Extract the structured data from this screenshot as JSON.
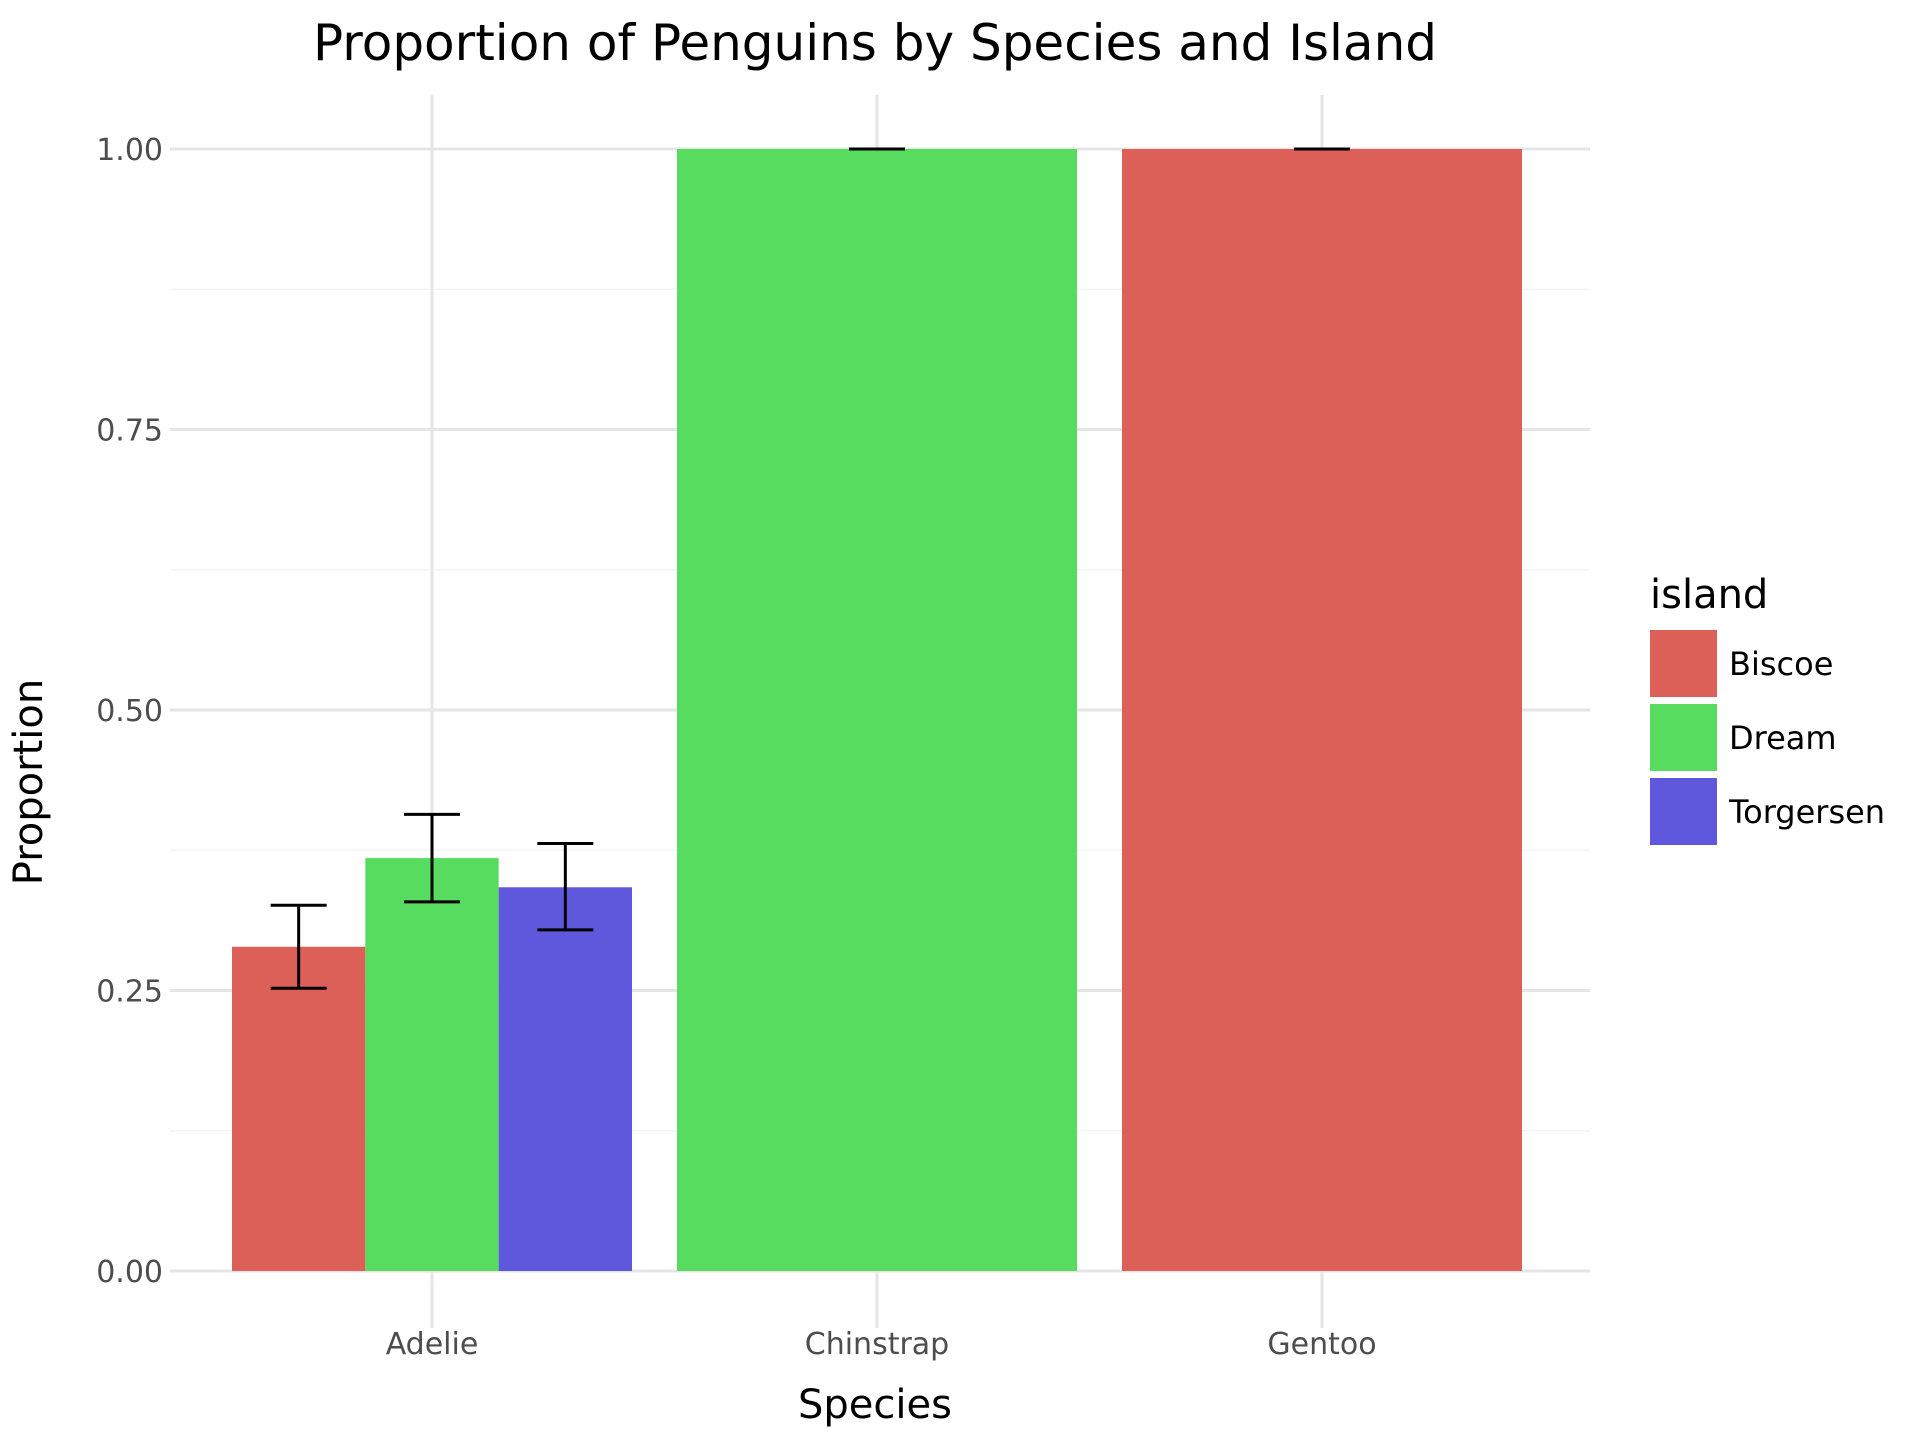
{
  "chart_data": {
    "type": "bar",
    "title": "Proportion of Penguins by Species and Island",
    "xlabel": "Species",
    "ylabel": "Proportion",
    "categories": [
      "Adelie",
      "Chinstrap",
      "Gentoo"
    ],
    "ylim": [
      0,
      1.05
    ],
    "yticks": [
      {
        "value": 0,
        "label": "0.00"
      },
      {
        "value": 0.25,
        "label": "0.25"
      },
      {
        "value": 0.5,
        "label": "0.50"
      },
      {
        "value": 0.75,
        "label": "0.75"
      },
      {
        "value": 1,
        "label": "1.00"
      }
    ],
    "grid": true,
    "legend": {
      "title": "island",
      "position": "right"
    },
    "islands": [
      {
        "name": "Biscoe",
        "color": "#dc5f58"
      },
      {
        "name": "Dream",
        "color": "#58dc5f"
      },
      {
        "name": "Torgersen",
        "color": "#5f58dc"
      }
    ],
    "bars": [
      {
        "species": "Adelie",
        "island": "Biscoe",
        "value": 0.289,
        "err_low": 0.252,
        "err_high": 0.326
      },
      {
        "species": "Adelie",
        "island": "Dream",
        "value": 0.368,
        "err_low": 0.329,
        "err_high": 0.407
      },
      {
        "species": "Adelie",
        "island": "Torgersen",
        "value": 0.342,
        "err_low": 0.304,
        "err_high": 0.381
      },
      {
        "species": "Chinstrap",
        "island": "Dream",
        "value": 1.0,
        "err_low": 1.0,
        "err_high": 1.0
      },
      {
        "species": "Gentoo",
        "island": "Biscoe",
        "value": 1.0,
        "err_low": 1.0,
        "err_high": 1.0
      }
    ]
  }
}
